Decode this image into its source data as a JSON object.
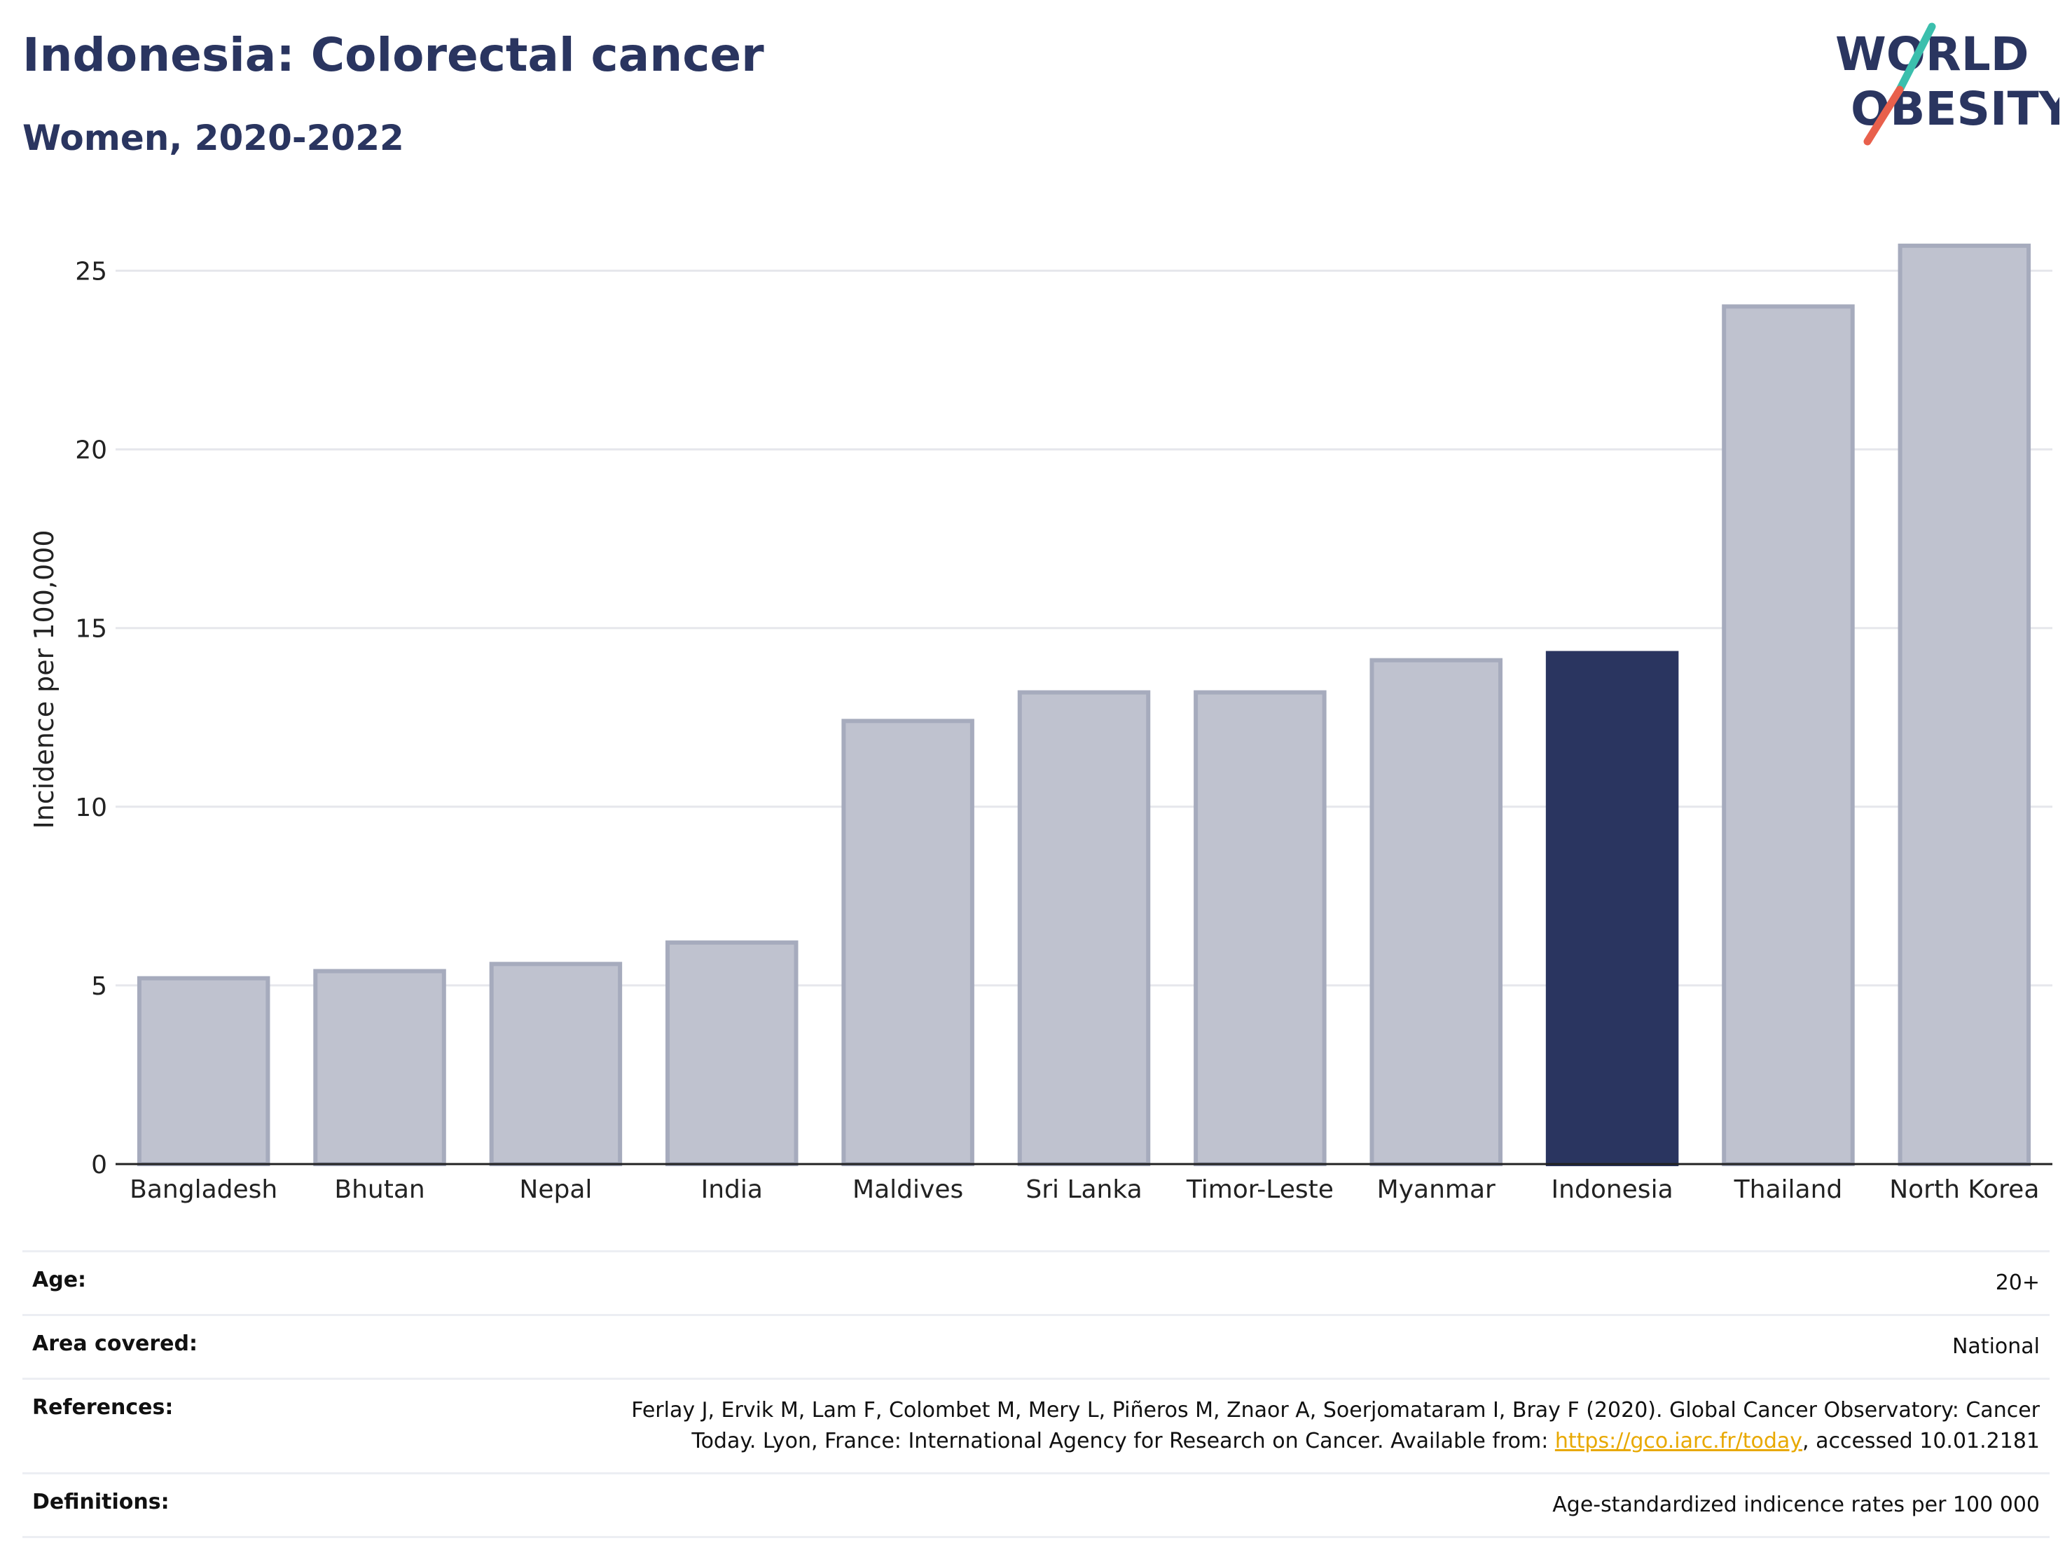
{
  "header": {
    "title": "Indonesia: Colorectal cancer",
    "subtitle": "Women, 2020-2022"
  },
  "logo": {
    "line1": "WORLD",
    "line2": "OBESITY",
    "colors": {
      "text": "#2a3560",
      "slash_top": "#3bbfad",
      "slash_bottom": "#e8604c"
    }
  },
  "chart_data": {
    "type": "bar",
    "ylabel": "Incidence per 100,000",
    "xlabel": "",
    "ylim": [
      0,
      26.5
    ],
    "yticks": [
      0,
      5,
      10,
      15,
      20,
      25
    ],
    "grid": true,
    "categories": [
      "Bangladesh",
      "Bhutan",
      "Nepal",
      "India",
      "Maldives",
      "Sri Lanka",
      "Timor-Leste",
      "Myanmar",
      "Indonesia",
      "Thailand",
      "North Korea"
    ],
    "values": [
      5.2,
      5.4,
      5.6,
      6.2,
      12.4,
      13.2,
      13.2,
      14.1,
      14.3,
      24.0,
      25.7
    ],
    "highlight": "Indonesia",
    "colors": {
      "bar": "#bfc2cf",
      "bar_border": "#a6abbd",
      "highlight": "#2a3560",
      "grid": "#e6e7ec"
    }
  },
  "meta": {
    "age_label": "Age:",
    "age_value": "20+",
    "area_label": "Area covered:",
    "area_value": "National",
    "references_label": "References:",
    "references_text_1": "Ferlay J, Ervik M, Lam F, Colombet M, Mery L, Piñeros M, Znaor A, Soerjomataram I, Bray F (2020). Global Cancer Observatory: Cancer Today. Lyon, France: International Agency for Research on Cancer. Available from: ",
    "references_link": "https://gco.iarc.fr/today",
    "references_text_2": ", accessed 10.01.2181",
    "definitions_label": "Definitions:",
    "definitions_value": "Age-standardized indicence rates per 100 000"
  }
}
